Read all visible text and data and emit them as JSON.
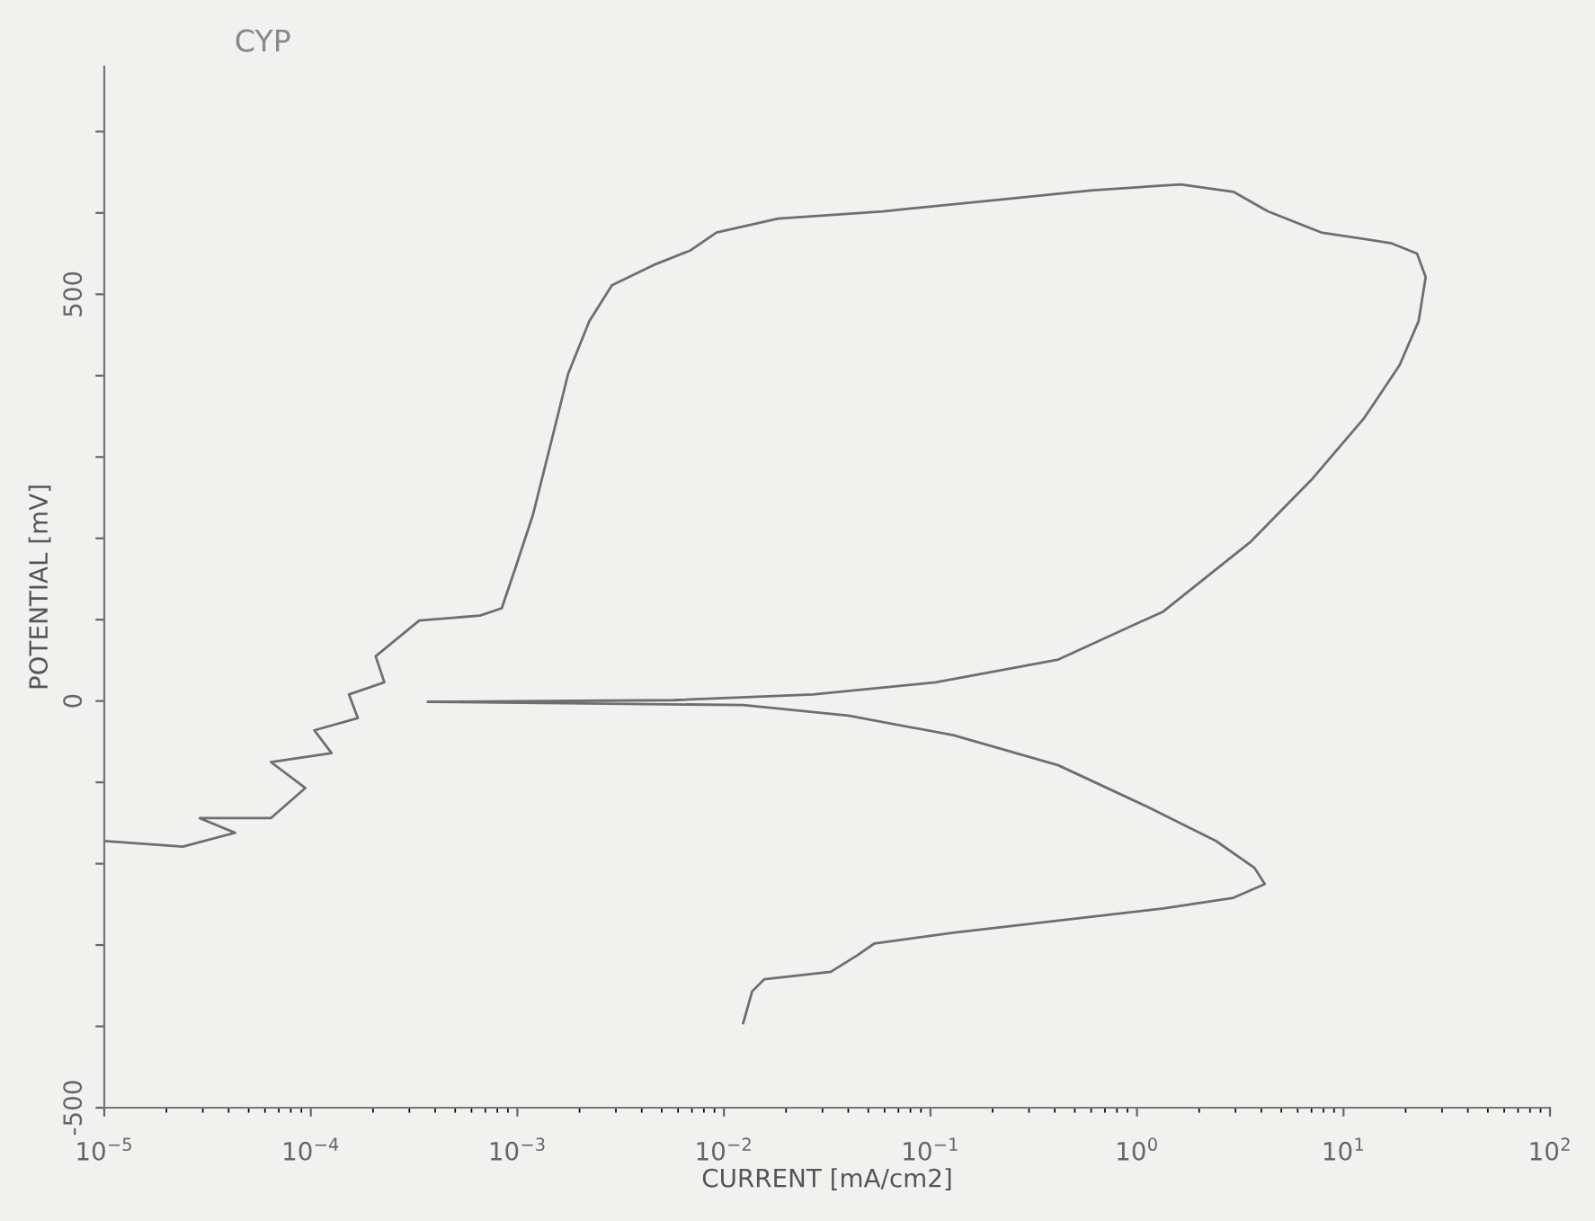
{
  "chart_data": {
    "type": "line",
    "title": "CYP",
    "xlabel": "CURRENT [mA/cm2]",
    "ylabel": "POTENTIAL [mV]",
    "log": "x",
    "grid": false,
    "legend": false,
    "marker": "none",
    "line_style": "solid",
    "xlim": [
      1e-05,
      100
    ],
    "xticks": [
      {
        "value": 1e-05,
        "label": "10$^{−5}$"
      },
      {
        "value": 0.0001,
        "label": "10$^{−4}$"
      },
      {
        "value": 0.001,
        "label": "10$^{−3}$"
      },
      {
        "value": 0.01,
        "label": "10$^{−2}$"
      },
      {
        "value": 0.1,
        "label": "10$^{−1}$"
      },
      {
        "value": 1,
        "label": "10$^{0}$"
      },
      {
        "value": 10,
        "label": "10$^{1}$"
      },
      {
        "value": 100,
        "label": "10$^{2}$"
      }
    ],
    "ylim": [
      -500,
      780
    ],
    "yticks": [
      -500,
      {
        "value": -400,
        "label": null
      },
      {
        "value": -300,
        "label": null
      },
      {
        "value": -200,
        "label": null
      },
      {
        "value": -100,
        "label": null
      },
      0,
      {
        "value": 100,
        "label": null
      },
      {
        "value": 200,
        "label": null
      },
      {
        "value": 300,
        "label": null
      },
      {
        "value": 400,
        "label": null
      },
      500,
      {
        "value": 600,
        "label": null
      },
      {
        "value": 700,
        "label": null
      }
    ],
    "series": [
      {
        "color": "#6e6e6e",
        "x": [
          0.0124,
          0.0137,
          0.0157,
          0.0329,
          0.044,
          0.0536,
          0.129,
          0.416,
          1.34,
          2.93,
          4.16,
          3.7,
          2.41,
          1.1,
          0.416,
          0.129,
          0.04,
          0.0124,
          0.00214,
          0.00037
        ],
        "values": [
          -396,
          -357,
          -342,
          -333,
          -313,
          -298,
          -285,
          -270,
          -255,
          -242,
          -225,
          -205,
          -172,
          -129,
          -79,
          -42,
          -18,
          -5,
          -3,
          -1
        ]
      },
      {
        "color": "#6e6e6e",
        "x": [
          1e-05,
          2.4e-05,
          4.3e-05,
          2.9e-05,
          6.4e-05,
          9.4e-05,
          6.4e-05,
          0.000126,
          0.000104,
          0.000169,
          0.000153,
          0.000227,
          0.000206,
          0.000335,
          0.00066,
          0.00084,
          0.00098,
          0.00119,
          0.00145,
          0.00176,
          0.00223,
          0.00287,
          0.00467,
          0.0069,
          0.0092,
          0.0183,
          0.059,
          0.19,
          0.61,
          1.63,
          2.93,
          4.3,
          7.8,
          16.9,
          22.7,
          25,
          23.1,
          18.7,
          12.6,
          7,
          3.56,
          1.34,
          0.416,
          0.106,
          0.027,
          0.0057,
          0.00037
        ],
        "values": [
          -172,
          -179,
          -162,
          -144,
          -144,
          -107,
          -75,
          -64,
          -36,
          -21,
          8,
          23,
          55,
          99,
          105,
          114,
          164,
          229,
          316,
          402,
          467,
          511,
          537,
          554,
          576,
          593,
          602,
          615,
          628,
          635,
          626,
          602,
          576,
          563,
          550,
          521,
          467,
          413,
          348,
          272,
          196,
          110,
          51,
          23,
          8,
          1,
          -1
        ]
      }
    ]
  }
}
